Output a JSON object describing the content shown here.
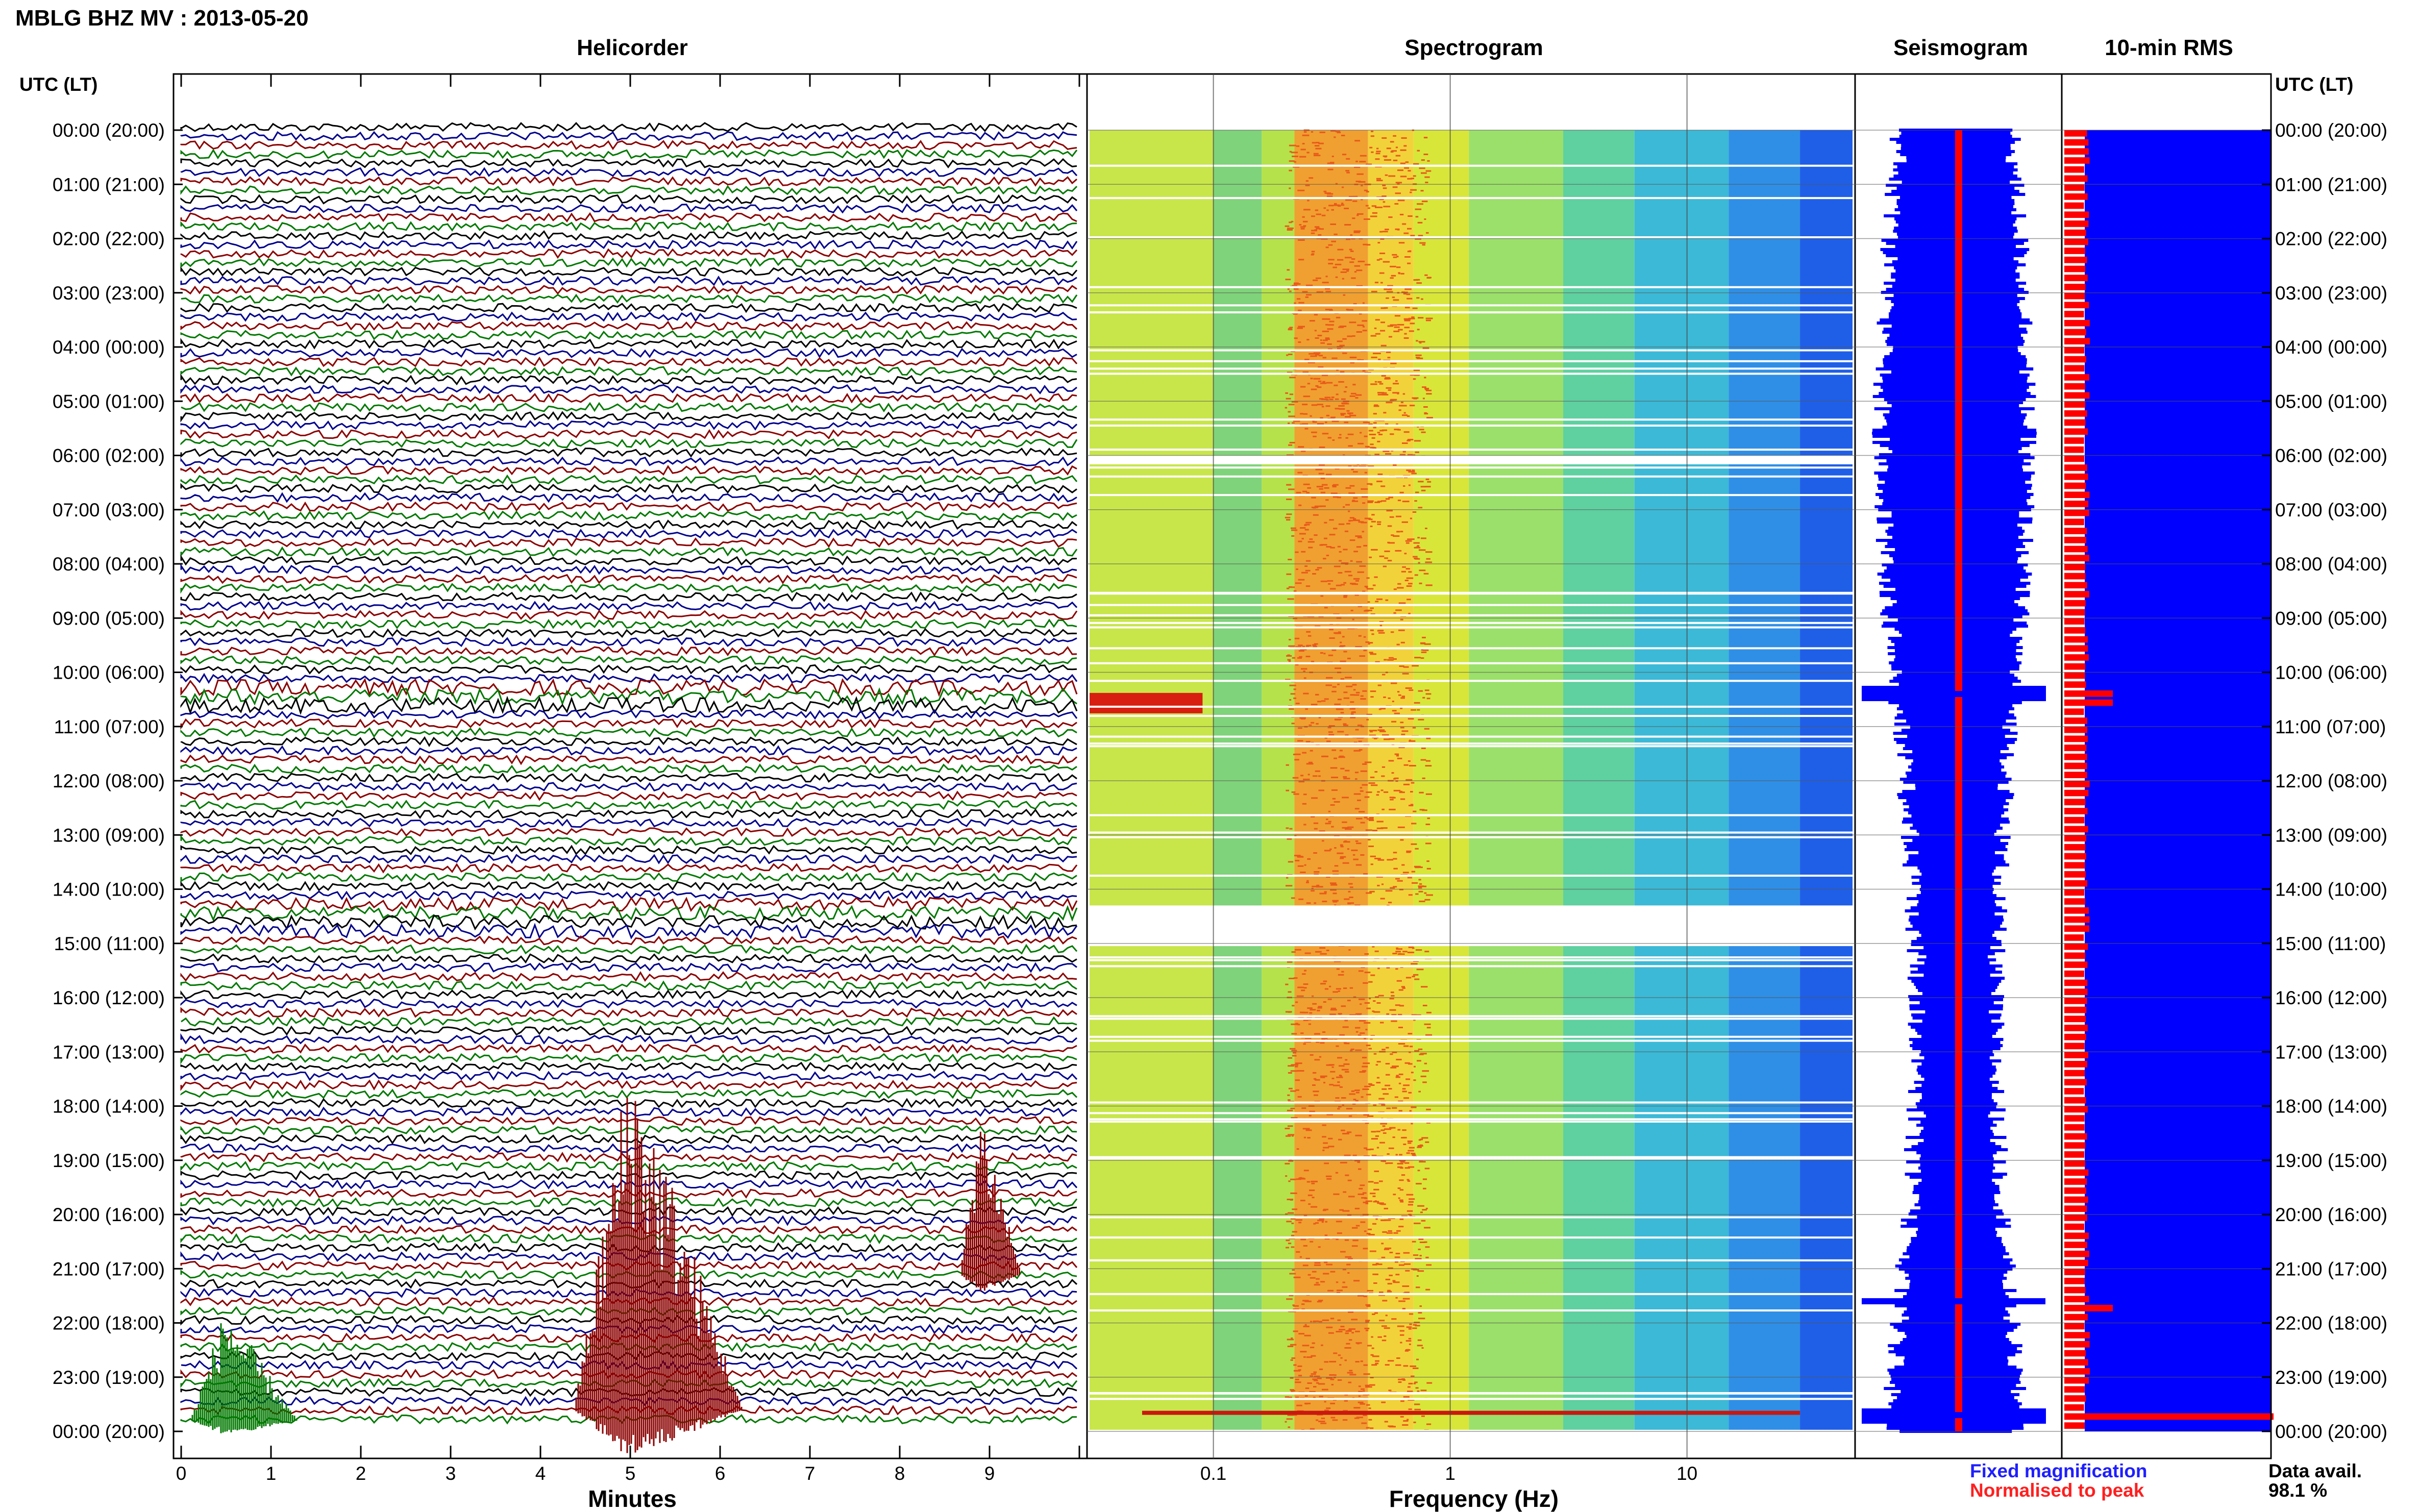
{
  "header": {
    "title": "MBLG BHZ MV : 2013-05-20"
  },
  "panels": {
    "helicorder": "Helicorder",
    "spectrogram": "Spectrogram",
    "seismogram": "Seismogram",
    "rms": "10-min RMS"
  },
  "axes": {
    "left_header": "UTC (LT)",
    "right_header": "UTC (LT)",
    "minutes_label": "Minutes",
    "frequency_label": "Frequency (Hz)"
  },
  "legend": {
    "fixed": "Fixed magnification",
    "normalised": "Normalised to peak",
    "fixed_color": "#1f1fff",
    "normalised_color": "#ff1f1f"
  },
  "availability": {
    "label": "Data avail.",
    "value": "98.1 %"
  },
  "colors": {
    "trace_black": "#000000",
    "trace_blue": "#00008b",
    "trace_red": "#8b0000",
    "trace_green": "#007800",
    "seismo_blue": "#0000ff",
    "rms_red": "#ff0000"
  },
  "chart_data": {
    "type": "heatmap",
    "time_labels": [
      "00:00 (20:00)",
      "01:00 (21:00)",
      "02:00 (22:00)",
      "03:00 (23:00)",
      "04:00 (00:00)",
      "05:00 (01:00)",
      "06:00 (02:00)",
      "07:00 (03:00)",
      "08:00 (04:00)",
      "09:00 (05:00)",
      "10:00 (06:00)",
      "11:00 (07:00)",
      "12:00 (08:00)",
      "13:00 (09:00)",
      "14:00 (10:00)",
      "15:00 (11:00)",
      "16:00 (12:00)",
      "17:00 (13:00)",
      "18:00 (14:00)",
      "19:00 (15:00)",
      "20:00 (16:00)",
      "21:00 (17:00)",
      "22:00 (18:00)",
      "23:00 (19:00)",
      "00:00 (20:00)"
    ],
    "minute_ticks": [
      "0",
      "1",
      "2",
      "3",
      "4",
      "5",
      "6",
      "7",
      "8",
      "9"
    ],
    "minute_range": [
      0,
      10
    ],
    "frequency_ticks": [
      "0.1",
      "1",
      "10"
    ],
    "frequency_range": [
      0.03,
      50
    ],
    "frequency_scale": "log",
    "spectrogram_gaps_utc_hours": [
      [
        6.0,
        6.15
      ],
      [
        14.3,
        15.05
      ]
    ],
    "events_utc_hours": [
      10.4,
      21.6,
      23.7
    ],
    "rms_spikes_utc_hours": [
      10.4,
      21.6,
      23.7
    ]
  }
}
